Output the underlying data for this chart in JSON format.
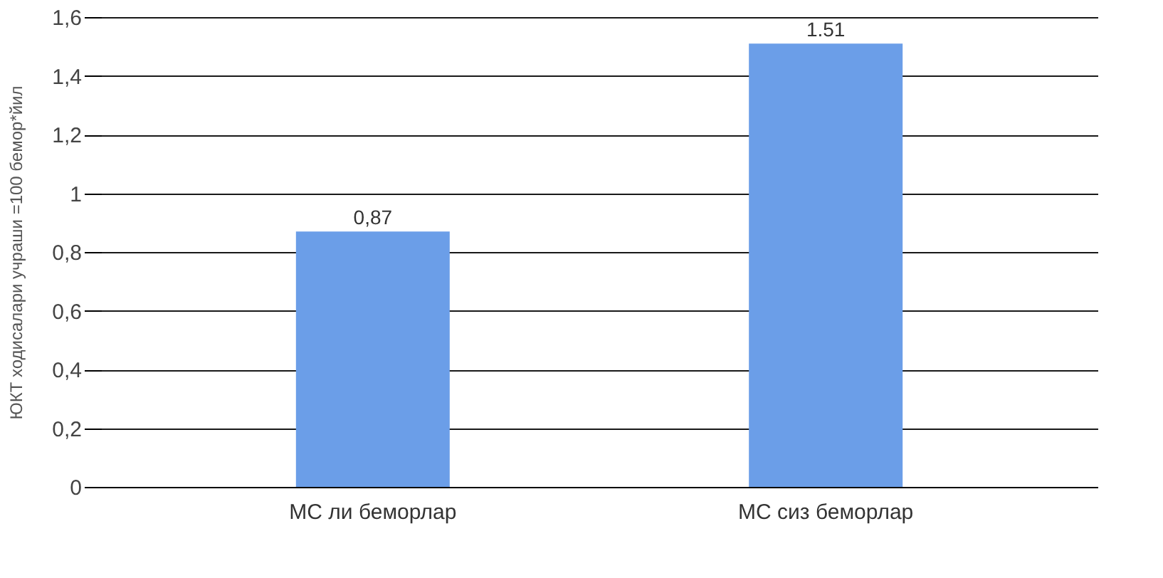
{
  "chart_data": {
    "type": "bar",
    "ylabel": "ЮКТ ходисалари учраши =100 бемор*йил",
    "categories": [
      "МС ли беморлар",
      "МС сиз беморлар"
    ],
    "values": [
      0.87,
      1.51
    ],
    "value_labels": [
      "0,87",
      "1.51"
    ],
    "color": "#6b9ee8",
    "ylim": [
      0,
      1.6
    ],
    "yticks": [
      0,
      {
        "value": 0.2,
        "label": "0,2"
      },
      {
        "value": 0.4,
        "label": "0,4"
      },
      {
        "value": 0.6,
        "label": "0,6"
      },
      {
        "value": 0.8,
        "label": "0,8"
      },
      1,
      {
        "value": 1.2,
        "label": "1,2"
      },
      {
        "value": 1.4,
        "label": "1,4"
      },
      {
        "value": 1.6,
        "label": "1,6"
      }
    ],
    "grid": "y"
  }
}
